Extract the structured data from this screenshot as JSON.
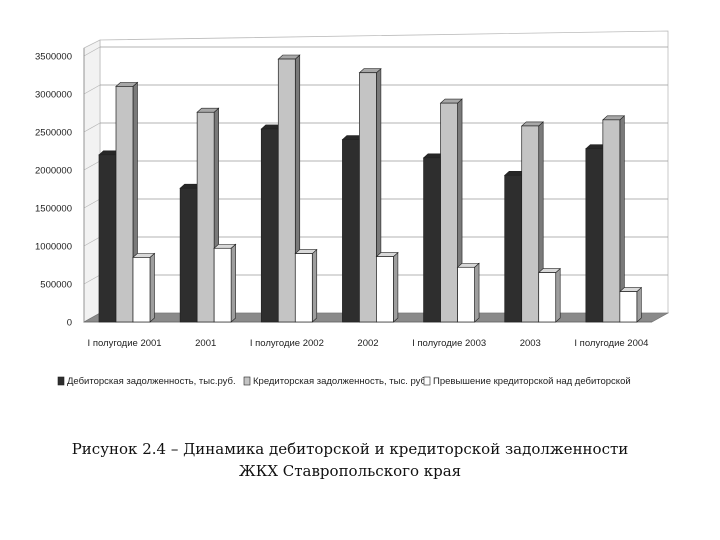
{
  "chart_data": {
    "type": "bar",
    "style": "3d-clustered-column",
    "title": "",
    "xlabel": "",
    "ylabel": "",
    "ylim": [
      0,
      3500000
    ],
    "yticks": [
      "0",
      "500000",
      "1000000",
      "1500000",
      "2000000",
      "2500000",
      "3000000",
      "3500000"
    ],
    "grid": true,
    "legend_position": "bottom",
    "categories": [
      "I полугодие 2001",
      "2001",
      "I полугодие 2002",
      "2002",
      "I полугодие 2003",
      "2003",
      "I полугодие 2004"
    ],
    "series": [
      {
        "name": "Дебиторская задолженность, тыс.руб.",
        "color": "#2e2e2e",
        "values": [
          2200000,
          1760000,
          2540000,
          2400000,
          2160000,
          1930000,
          2280000
        ]
      },
      {
        "name": "Кредиторская задолженность, тыс. руб.",
        "color": "#c4c4c4",
        "values": [
          3100000,
          2760000,
          3460000,
          3280000,
          2880000,
          2580000,
          2660000
        ]
      },
      {
        "name": "Превышение кредиторской над дебиторской",
        "color": "#ffffff",
        "values": [
          850000,
          970000,
          900000,
          860000,
          720000,
          650000,
          400000
        ]
      }
    ]
  },
  "caption": {
    "line1": "Рисунок 2.4 – Динамика дебиторской и кредиторской задолженности",
    "line2": "ЖКХ Ставропольского края"
  }
}
